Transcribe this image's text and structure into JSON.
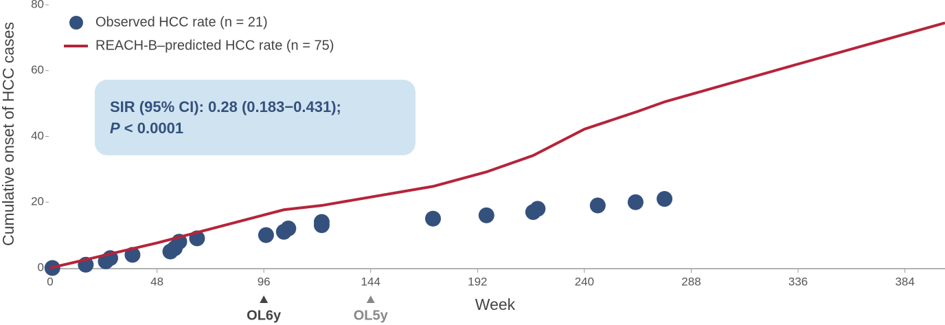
{
  "chart_data": {
    "type": "scatter",
    "ylabel": "Cumulative onset of HCC cases",
    "xlabel": "Week",
    "xlim": [
      0,
      402
    ],
    "ylim": [
      0,
      80
    ],
    "xticks": [
      0,
      48,
      96,
      144,
      192,
      240,
      288,
      336,
      384
    ],
    "yticks": [
      0,
      20,
      40,
      60,
      80
    ],
    "legend": "upper left",
    "series": [
      {
        "name": "Observed HCC rate (n = 21)",
        "type": "scatter",
        "color": "#34507d",
        "x": [
          1,
          16,
          25,
          27,
          37,
          54,
          56,
          58,
          66,
          97,
          105,
          107,
          122,
          122,
          172,
          196,
          217,
          219,
          246,
          263,
          276
        ],
        "values": [
          0,
          1,
          2,
          3,
          4,
          5,
          6,
          8,
          9,
          10,
          11,
          12,
          13,
          14,
          15,
          16,
          17,
          18,
          19,
          20,
          21
        ]
      },
      {
        "name": "REACH-B–predicted HCC rate (n = 75)",
        "type": "line",
        "color": "#b5243a",
        "x": [
          0,
          48,
          105,
          122,
          172,
          196,
          217,
          240,
          264,
          276,
          335,
          402
        ],
        "values": [
          0,
          7.6,
          17.7,
          19,
          24.8,
          29.2,
          34.2,
          42.2,
          47.6,
          50.5,
          61.8,
          74.5
        ]
      }
    ],
    "annotations": [
      {
        "x": 96,
        "label": "OL6y",
        "color": "#444444"
      },
      {
        "x": 144,
        "label": "OL5y",
        "color": "#888888"
      }
    ],
    "textbox": {
      "line1": "SIR (95% CI): 0.28 (0.183−0.431);",
      "italic": "P",
      "rest": " < 0.0001",
      "color": "#34507d",
      "background": "#cfe4f0"
    }
  }
}
